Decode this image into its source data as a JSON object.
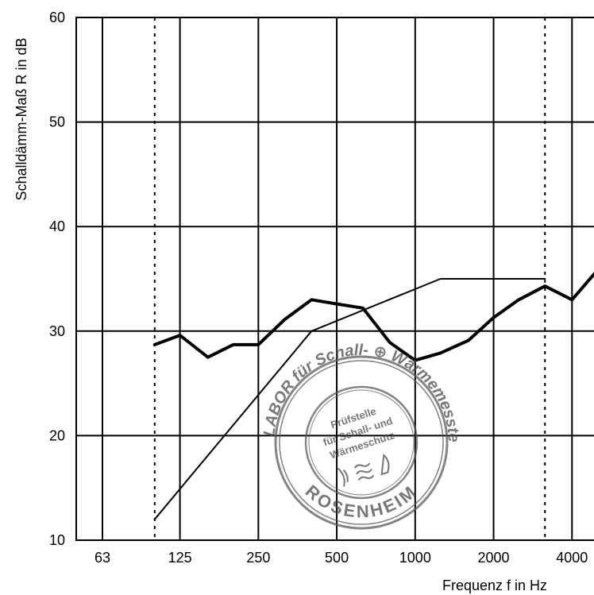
{
  "chart_data": {
    "type": "line",
    "title": "",
    "xlabel": "Frequenz f in Hz",
    "ylabel": "Schalldämm-Maß R in dB",
    "xscale": "log (third-octave bands)",
    "ylim": [
      10,
      60
    ],
    "y_ticks": [
      "10",
      "20",
      "30",
      "40",
      "50",
      "60"
    ],
    "x_ticks": [
      "63",
      "125",
      "250",
      "500",
      "1000",
      "2000",
      "4000"
    ],
    "reference_lines_hz": [
      100,
      3150
    ],
    "series": [
      {
        "style": "thick",
        "x": [
          100,
          125,
          160,
          200,
          250,
          315,
          400,
          500,
          630,
          800,
          1000,
          1250,
          1600,
          2000,
          2500,
          3150,
          4000,
          5000
        ],
        "values": [
          28.7,
          29.6,
          27.5,
          28.7,
          28.7,
          31.1,
          33.0,
          32.6,
          32.2,
          28.9,
          27.2,
          27.9,
          29.1,
          31.3,
          33.0,
          34.3,
          33.0,
          35.8
        ]
      },
      {
        "style": "thin",
        "x": [
          100,
          400,
          1250,
          3150
        ],
        "values": [
          12,
          30,
          35,
          35
        ]
      }
    ],
    "grid": true,
    "legend": "none"
  },
  "stamp": {
    "ring_text": "LABOR für Schall- ⊕ Wärmemesstechnik",
    "inner_lines": [
      "Prüfstelle",
      "für Schall- und",
      "Wärmeschutz"
    ],
    "bottom_text": "ROSENHEIM"
  }
}
